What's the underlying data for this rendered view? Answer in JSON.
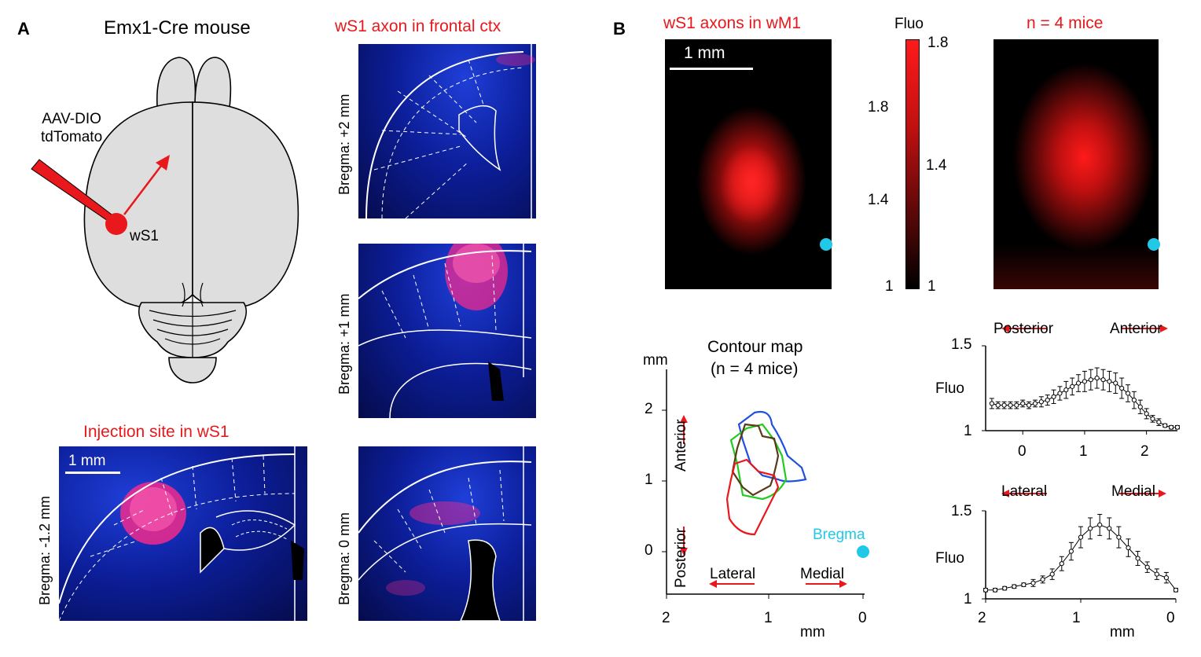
{
  "panel_a": {
    "letter": "A",
    "title": "Emx1-Cre mouse",
    "virus_line1": "AAV-DIO",
    "virus_line2": "tdTomato",
    "injection_label": "wS1",
    "frontal_title": "wS1 axon in frontal ctx",
    "injection_title": "Injection site in wS1",
    "scale_label": "1 mm",
    "sections": {
      "bregma_plus2": "Bregma: +2 mm",
      "bregma_plus1": "Bregma: +1 mm",
      "bregma_0": "Bregma: 0 mm",
      "bregma_minus12": "Bregma: -1.2 mm"
    }
  },
  "panel_b": {
    "letter": "B",
    "map1_title": "wS1 axons in wM1",
    "map1_scale": "1 mm",
    "map2_title": "n = 4 mice",
    "colorbar": {
      "title": "Fluo",
      "right_max": "1.8",
      "right_min": "1",
      "left_ticks": [
        "1.8",
        "1.4",
        "1.4",
        "1"
      ]
    },
    "contour": {
      "title_line1": "Contour map",
      "title_line2": "(n = 4 mice)",
      "ylabel": "mm",
      "xlabel": "mm",
      "y_ticks": [
        "2",
        "1",
        "0"
      ],
      "x_ticks": [
        "2",
        "1",
        "0"
      ],
      "anterior": "Anterior",
      "posterior": "Posterior",
      "lateral": "Lateral",
      "medial": "Medial",
      "bregma": "Bregma"
    },
    "colors": {
      "accent_red": "#e8181c",
      "bregma_cyan": "#22c8e8"
    }
  },
  "chart_data": [
    {
      "type": "line",
      "ylabel": "Fluo",
      "y_ticks": [
        "1.5",
        "1"
      ],
      "x_ticks": [
        "0",
        "1",
        "2"
      ],
      "direction_left": "Posterior",
      "direction_right": "Anterior",
      "ylim": [
        1,
        1.5
      ],
      "xlim": [
        -0.6,
        2.5
      ],
      "x": [
        -0.5,
        -0.4,
        -0.3,
        -0.2,
        -0.1,
        0,
        0.1,
        0.2,
        0.3,
        0.4,
        0.5,
        0.6,
        0.7,
        0.8,
        0.9,
        1.0,
        1.1,
        1.2,
        1.3,
        1.4,
        1.5,
        1.6,
        1.7,
        1.8,
        1.9,
        2.0,
        2.1,
        2.2,
        2.3,
        2.4,
        2.5
      ],
      "values": [
        1.16,
        1.15,
        1.15,
        1.15,
        1.15,
        1.16,
        1.15,
        1.16,
        1.17,
        1.18,
        1.2,
        1.22,
        1.24,
        1.26,
        1.28,
        1.29,
        1.3,
        1.31,
        1.3,
        1.29,
        1.28,
        1.25,
        1.22,
        1.18,
        1.14,
        1.1,
        1.07,
        1.05,
        1.03,
        1.02,
        1.02
      ],
      "errors": [
        0.03,
        0.02,
        0.02,
        0.02,
        0.02,
        0.02,
        0.02,
        0.02,
        0.03,
        0.03,
        0.04,
        0.04,
        0.05,
        0.05,
        0.05,
        0.06,
        0.06,
        0.06,
        0.06,
        0.06,
        0.06,
        0.06,
        0.05,
        0.05,
        0.04,
        0.03,
        0.02,
        0.02,
        0.01,
        0.01,
        0.01
      ]
    },
    {
      "type": "line",
      "ylabel": "Fluo",
      "xlabel": "mm",
      "y_ticks": [
        "1.5",
        "1"
      ],
      "x_ticks": [
        "2",
        "1",
        "0"
      ],
      "direction_left": "Lateral",
      "direction_right": "Medial",
      "ylim": [
        1,
        1.5
      ],
      "xlim": [
        2,
        0
      ],
      "x": [
        2.0,
        1.9,
        1.8,
        1.7,
        1.6,
        1.5,
        1.4,
        1.3,
        1.2,
        1.1,
        1.0,
        0.9,
        0.8,
        0.7,
        0.6,
        0.5,
        0.4,
        0.3,
        0.2,
        0.1,
        0.0
      ],
      "values": [
        1.05,
        1.05,
        1.06,
        1.07,
        1.08,
        1.09,
        1.11,
        1.14,
        1.2,
        1.27,
        1.35,
        1.4,
        1.42,
        1.4,
        1.35,
        1.29,
        1.23,
        1.18,
        1.14,
        1.12,
        1.05
      ],
      "errors": [
        0.01,
        0.01,
        0.01,
        0.01,
        0.01,
        0.02,
        0.02,
        0.03,
        0.04,
        0.05,
        0.06,
        0.06,
        0.06,
        0.06,
        0.06,
        0.05,
        0.04,
        0.03,
        0.03,
        0.03,
        0.01
      ]
    }
  ]
}
